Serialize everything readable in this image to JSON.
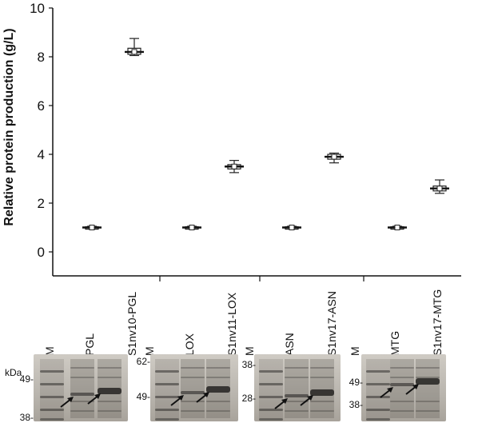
{
  "chart_data": {
    "type": "box",
    "ylabel": "Relative protein production (g/L)",
    "ylim": [
      0,
      10
    ],
    "yticks": [
      0,
      2,
      4,
      6,
      8,
      10
    ],
    "groups": [
      {
        "categories": [
          "M",
          "PGL",
          "S1nv10-PGL"
        ],
        "boxes": [
          {
            "category": "PGL",
            "median": 1.0,
            "q1": 0.97,
            "q3": 1.03,
            "min": 0.95,
            "max": 1.05
          },
          {
            "category": "S1nv10-PGL",
            "median": 8.2,
            "q1": 8.1,
            "q3": 8.35,
            "min": 8.05,
            "max": 8.75
          }
        ]
      },
      {
        "categories": [
          "M",
          "LOX",
          "S1nv11-LOX"
        ],
        "boxes": [
          {
            "category": "LOX",
            "median": 1.0,
            "q1": 0.97,
            "q3": 1.03,
            "min": 0.95,
            "max": 1.05
          },
          {
            "category": "S1nv11-LOX",
            "median": 3.5,
            "q1": 3.4,
            "q3": 3.58,
            "min": 3.25,
            "max": 3.75
          }
        ]
      },
      {
        "categories": [
          "M",
          "ASN",
          "S1nv17-ASN"
        ],
        "boxes": [
          {
            "category": "ASN",
            "median": 1.0,
            "q1": 0.97,
            "q3": 1.03,
            "min": 0.95,
            "max": 1.05
          },
          {
            "category": "S1nv17-ASN",
            "median": 3.9,
            "q1": 3.8,
            "q3": 4.0,
            "min": 3.65,
            "max": 4.05
          }
        ]
      },
      {
        "categories": [
          "M",
          "MTG",
          "S1nv17-MTG"
        ],
        "boxes": [
          {
            "category": "MTG",
            "median": 1.0,
            "q1": 0.97,
            "q3": 1.03,
            "min": 0.95,
            "max": 1.05
          },
          {
            "category": "S1nv17-MTG",
            "median": 2.6,
            "q1": 2.5,
            "q3": 2.7,
            "min": 2.4,
            "max": 2.95
          }
        ]
      }
    ]
  },
  "gels": {
    "unit": "kDa",
    "panels": [
      {
        "markers": [
          "49",
          "38"
        ],
        "target_kda": 45
      },
      {
        "markers": [
          "62",
          "49"
        ],
        "target_kda": 47
      },
      {
        "markers": [
          "38",
          "28"
        ],
        "target_kda": 30
      },
      {
        "markers": [
          "49",
          "38"
        ],
        "target_kda": 51
      }
    ]
  },
  "colors": {
    "axis": "#111111",
    "gel_bg": "#b9b5ae",
    "band": "#2b2a28"
  }
}
